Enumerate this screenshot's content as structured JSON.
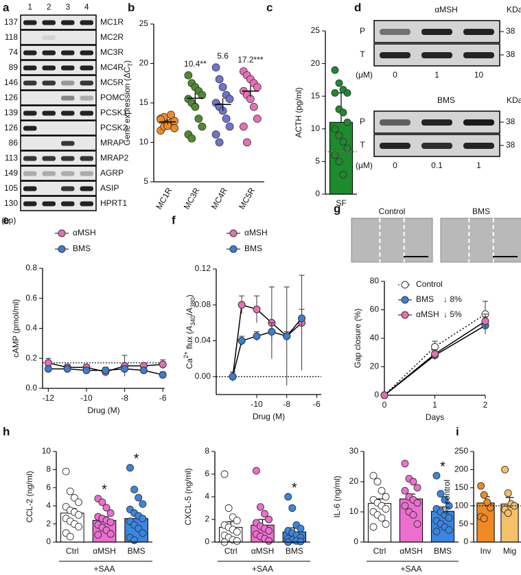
{
  "panel_labels": [
    "a",
    "b",
    "c",
    "d",
    "e",
    "f",
    "g",
    "h",
    "i"
  ],
  "gel": {
    "lanes": [
      "1",
      "2",
      "3",
      "4"
    ],
    "size_unit": "(bp)",
    "rows": [
      {
        "name": "MC1R",
        "size": 137,
        "bands": [
          1,
          1,
          1,
          1
        ]
      },
      {
        "name": "MC2R",
        "size": 118,
        "bands": [
          0,
          0.1,
          0,
          0
        ]
      },
      {
        "name": "MC3R",
        "size": 74,
        "bands": [
          1,
          1,
          1,
          1
        ]
      },
      {
        "name": "MC4R",
        "size": 89,
        "bands": [
          1,
          1,
          1,
          1
        ]
      },
      {
        "name": "MC5R",
        "size": 146,
        "bands": [
          0.9,
          0.9,
          0.4,
          0.9
        ]
      },
      {
        "name": "POMC",
        "size": 126,
        "bands": [
          0,
          0,
          0.5,
          0.3
        ]
      },
      {
        "name": "PCSK1",
        "size": 139,
        "bands": [
          1,
          1,
          1,
          1
        ]
      },
      {
        "name": "PCSK2",
        "size": 126,
        "bands": [
          1,
          0,
          0,
          0
        ]
      },
      {
        "name": "MRAP",
        "size": 86,
        "bands": [
          0,
          0,
          0.9,
          0
        ]
      },
      {
        "name": "MRAP2",
        "size": 113,
        "bands": [
          0.9,
          0.9,
          0.9,
          0.9
        ]
      },
      {
        "name": "AGRP",
        "size": 149,
        "bands": [
          0.3,
          0.3,
          0.3,
          0.3
        ]
      },
      {
        "name": "ASIP",
        "size": 105,
        "bands": [
          1,
          0,
          0.9,
          1
        ]
      },
      {
        "name": "HPRT1",
        "size": 130,
        "bands": [
          1,
          1,
          1,
          1
        ]
      }
    ]
  },
  "western": [
    {
      "title": "αMSH",
      "unit_header": "KDa",
      "dose_label": "(μM)",
      "doses": [
        "0",
        "1",
        "10"
      ],
      "rows": [
        {
          "name": "P",
          "size": 38,
          "bands": [
            0.5,
            0.9,
            0.9
          ]
        },
        {
          "name": "T",
          "size": 38,
          "bands": [
            0.9,
            0.9,
            0.9
          ]
        }
      ]
    },
    {
      "title": "BMS",
      "unit_header": "KDa",
      "dose_label": "(μM)",
      "doses": [
        "0",
        "0.1",
        "1"
      ],
      "rows": [
        {
          "name": "P",
          "size": 38,
          "bands": [
            0.6,
            0.9,
            0.95
          ]
        },
        {
          "name": "T",
          "size": 38,
          "bands": [
            0.9,
            0.85,
            0.9
          ]
        }
      ]
    }
  ],
  "chart_data": [
    {
      "type": "strip",
      "ylabel": [
        "Gene expression (ΔC",
        "T",
        ")"
      ],
      "ylabel_style": [
        "",
        "sub",
        ""
      ],
      "categories": [
        "MC1R",
        "MC3R",
        "MC4R",
        "MC5R"
      ],
      "colors": [
        "#f08a24",
        "#4e8a2e",
        "#6f73d2",
        "#e66fb5"
      ],
      "points": [
        [
          11.5,
          12,
          12.3,
          12.5,
          12.7,
          13,
          13.2,
          12.1,
          13.5,
          11.8,
          12.9
        ],
        [
          18.5,
          17.5,
          17,
          16.5,
          16,
          15.5,
          15,
          14.5,
          13,
          12,
          11,
          10.5
        ],
        [
          19.5,
          18,
          17,
          16,
          15.5,
          15,
          14.5,
          14,
          13,
          12,
          11,
          10
        ],
        [
          19,
          18.5,
          18,
          17.5,
          17,
          16.5,
          16,
          15.5,
          14.5,
          13,
          12,
          10
        ]
      ],
      "means": [
        12.6,
        15.6,
        14.8,
        16.5
      ],
      "sems": [
        0.3,
        0.7,
        0.8,
        0.7
      ],
      "annotations": [
        null,
        "10.4**",
        "5.6",
        "17.2***"
      ],
      "ylim": [
        5,
        25
      ],
      "yticks": [
        5,
        10,
        15,
        20,
        25
      ]
    },
    {
      "type": "bar",
      "ylabel": [
        "ACTH (pg/ml)"
      ],
      "ylabel_style": [
        ""
      ],
      "categories": [
        "SF"
      ],
      "values": [
        11
      ],
      "sems": [
        4.5
      ],
      "colors": [
        "#1e8a2e"
      ],
      "points": [
        [
          19,
          17,
          16,
          15.5,
          15.5,
          13,
          12.5,
          11,
          10,
          9,
          8,
          7,
          6,
          5,
          3
        ]
      ],
      "reference_line": 6.5,
      "reference_color": "#e05050",
      "ylim": [
        0,
        25
      ],
      "yticks": [
        0,
        5,
        10,
        15,
        20,
        25
      ]
    },
    {
      "type": "line",
      "ylabel": [
        "cAMP (pmol/ml)"
      ],
      "ylabel_style": [
        ""
      ],
      "xlabel": "Drug (M)",
      "x": [
        -12,
        -11,
        -10,
        -9,
        -8,
        -7,
        -6
      ],
      "series": [
        {
          "name": "αMSH",
          "color": "#e66fb5",
          "values": [
            0.17,
            0.14,
            0.14,
            0.11,
            0.15,
            0.15,
            0.16
          ],
          "errors": [
            0.03,
            0.02,
            0.02,
            0.03,
            0.07,
            0.02,
            0.03
          ]
        },
        {
          "name": "BMS",
          "color": "#3a7fd5",
          "values": [
            0.13,
            0.13,
            0.12,
            0.12,
            0.13,
            0.12,
            0.09
          ],
          "errors": [
            0.02,
            0.02,
            0.02,
            0.02,
            0.02,
            0.02,
            0.02
          ]
        }
      ],
      "reference_line": 0.17,
      "xlim": [
        -12.3,
        -5.9
      ],
      "xticks": [
        -12,
        -10,
        -8,
        -6
      ],
      "ylim": [
        0,
        0.8
      ],
      "yticks": [
        {
          "value": 0,
          "label": "0.0"
        },
        0.2,
        0.4,
        0.6,
        0.8
      ]
    },
    {
      "type": "line",
      "ylabel": [
        "Ca",
        "2+",
        " flux (",
        "A",
        "340",
        "/",
        "A",
        "380",
        ")"
      ],
      "ylabel_style": [
        "",
        "sup",
        "",
        "ital",
        "sub",
        "",
        "ital",
        "sub",
        ""
      ],
      "xlabel": "Drug (M)",
      "x": [
        -11.6,
        -11,
        -10,
        -9,
        -8,
        -7
      ],
      "series": [
        {
          "name": "αMSH",
          "color": "#e66fb5",
          "values": [
            0,
            0.08,
            0.075,
            0.06,
            0.045,
            0.06
          ],
          "errors": [
            0.005,
            0.01,
            0.015,
            0.04,
            0.055,
            0.053
          ]
        },
        {
          "name": "BMS",
          "color": "#3a7fd5",
          "values": [
            0,
            0.04,
            0.045,
            0.05,
            0.045,
            0.065
          ],
          "errors": [
            0.005,
            0.005,
            0.005,
            0.01,
            0.005,
            0.01
          ]
        }
      ],
      "reference_line": 0,
      "xlim": [
        -12.7,
        -5.7
      ],
      "xticks": [
        -10,
        -8,
        -6
      ],
      "ylim": [
        -0.02,
        0.12
      ],
      "yticks": [
        {
          "value": 0,
          "label": "0.00"
        },
        0.04,
        0.08,
        0.12
      ]
    },
    {
      "type": "line",
      "images": [
        "Control",
        "BMS"
      ],
      "ylabel": [
        "Gap closure (%)"
      ],
      "ylabel_style": [
        ""
      ],
      "xlabel": "Days",
      "x": [
        0,
        1,
        2
      ],
      "series": [
        {
          "name": "Control",
          "color": "#ffffff",
          "line_style": "dotted",
          "values": [
            0,
            34,
            57
          ],
          "errors": [
            0,
            4,
            9
          ]
        },
        {
          "name": "BMS",
          "color": "#3a7fd5",
          "note": "↓ 8%",
          "values": [
            0,
            28,
            49
          ],
          "errors": [
            0,
            3,
            6
          ]
        },
        {
          "name": "αMSH",
          "color": "#e66fb5",
          "note": "↓ 5%",
          "values": [
            0,
            29,
            52
          ],
          "errors": [
            0,
            3,
            5
          ]
        }
      ],
      "xlim": [
        0,
        2
      ],
      "xticks": [
        0,
        1,
        2
      ],
      "ylim": [
        0,
        80
      ],
      "yticks": [
        0,
        20,
        40,
        60,
        80
      ]
    },
    {
      "type": "bar",
      "ylabel": [
        "CCL-2 (ng/ml)"
      ],
      "ylabel_style": [
        ""
      ],
      "categories": [
        "Ctrl",
        "αMSH",
        "BMS"
      ],
      "group_label": "+SAA",
      "values": [
        3.2,
        2.4,
        2.6
      ],
      "sems": [
        0.5,
        0.4,
        0.6
      ],
      "colors": [
        "#ffffff",
        "#ec6fd0",
        "#3a86e0"
      ],
      "stars": [
        null,
        "*",
        "*"
      ],
      "points": [
        [
          7.8,
          5.6,
          4.9,
          4.4,
          3.9,
          3.5,
          3.3,
          3.0,
          2.6,
          2.3,
          2.0,
          1.7,
          1.0,
          0.6
        ],
        [
          4.8,
          4.4,
          3.8,
          3.2,
          2.8,
          2.6,
          2.4,
          2.2,
          1.9,
          1.6,
          1.3,
          0.9,
          0.8
        ],
        [
          8.2,
          5.8,
          4.9,
          4.2,
          3.6,
          3.2,
          2.9,
          2.6,
          2.3,
          1.9,
          1.5,
          1.0,
          0.5,
          0.2
        ]
      ],
      "ylim": [
        0,
        10
      ],
      "yticks": [
        0,
        2,
        4,
        6,
        8,
        10
      ]
    },
    {
      "type": "bar",
      "ylabel": [
        "CXCL-5 (ng/ml)"
      ],
      "ylabel_style": [
        ""
      ],
      "categories": [
        "Ctrl",
        "αMSH",
        "BMS"
      ],
      "group_label": "+SAA",
      "values": [
        1.3,
        1.5,
        0.9
      ],
      "sems": [
        0.5,
        0.5,
        0.35
      ],
      "colors": [
        "#ffffff",
        "#ec6fd0",
        "#3a86e0"
      ],
      "stars": [
        null,
        null,
        "*"
      ],
      "points": [
        [
          6.0,
          3.0,
          2.2,
          1.9,
          1.5,
          1.3,
          1.1,
          0.9,
          0.6,
          0.4,
          0.2,
          0.1,
          0.0
        ],
        [
          6.3,
          3.1,
          2.5,
          2.0,
          1.7,
          1.4,
          1.2,
          1.0,
          0.7,
          0.5,
          0.3,
          0.1
        ],
        [
          4.0,
          3.0,
          1.5,
          1.2,
          1.0,
          0.8,
          0.6,
          0.4,
          0.3,
          0.2,
          0.1,
          0.05,
          0.0
        ]
      ],
      "ylim": [
        0,
        8
      ],
      "yticks": [
        0,
        2,
        4,
        6,
        8
      ]
    },
    {
      "type": "bar",
      "ylabel": [
        "IL-6 (ng/ml)"
      ],
      "ylabel_style": [
        ""
      ],
      "categories": [
        "Ctrl",
        "αMSH",
        "BMS"
      ],
      "group_label": "+SAA",
      "values": [
        12.8,
        14.3,
        10.2
      ],
      "sems": [
        1.5,
        1.6,
        1.4
      ],
      "colors": [
        "#ffffff",
        "#ec6fd0",
        "#3a86e0"
      ],
      "stars": [
        null,
        null,
        "*"
      ],
      "points": [
        [
          22,
          20,
          17,
          15,
          14,
          13,
          12,
          11,
          10,
          9,
          8,
          6,
          5
        ],
        [
          26,
          21,
          20,
          18,
          17,
          15,
          14,
          13,
          12,
          10,
          9,
          6
        ],
        [
          22,
          16,
          14,
          12,
          11,
          10,
          9,
          8,
          7,
          6,
          5,
          4,
          3.5
        ]
      ],
      "ylim": [
        0,
        30
      ],
      "yticks": [
        0,
        10,
        20,
        30
      ]
    },
    {
      "type": "bar",
      "ylabel": [
        "% control"
      ],
      "ylabel_style": [
        ""
      ],
      "categories": [
        "Inv",
        "Mig"
      ],
      "values": [
        108,
        105
      ],
      "sems": [
        17,
        18
      ],
      "colors": [
        "#f08a24",
        "#f5c06a"
      ],
      "points": [
        [
          155,
          130,
          110,
          95,
          70,
          65
        ],
        [
          200,
          135,
          105,
          100,
          90,
          80
        ]
      ],
      "reference_line": 100,
      "ylim": [
        0,
        250
      ],
      "yticks": [
        0,
        50,
        100,
        150,
        200,
        250
      ]
    }
  ]
}
